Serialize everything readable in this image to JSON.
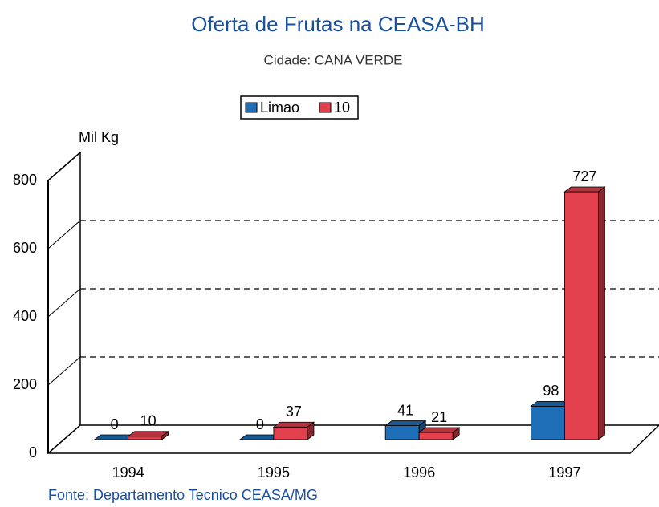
{
  "chart_data": {
    "type": "bar3d",
    "title": "Oferta de Frutas na CEASA-BH",
    "subtitle": "Cidade: CANA VERDE",
    "y_label": "Mil Kg",
    "source": "Fonte: Departamento Tecnico CEASA/MG",
    "categories": [
      "1994",
      "1995",
      "1996",
      "1997"
    ],
    "series": [
      {
        "name": "Limao",
        "color": "#1f6fb8",
        "values": [
          0,
          0,
          41,
          98
        ]
      },
      {
        "name": "10",
        "color": "#e2404c",
        "values": [
          10,
          37,
          21,
          727
        ]
      }
    ],
    "ylim": [
      0,
      800
    ],
    "yticks": [
      0,
      200,
      400,
      600,
      800
    ],
    "grid": true,
    "legend": "top"
  }
}
